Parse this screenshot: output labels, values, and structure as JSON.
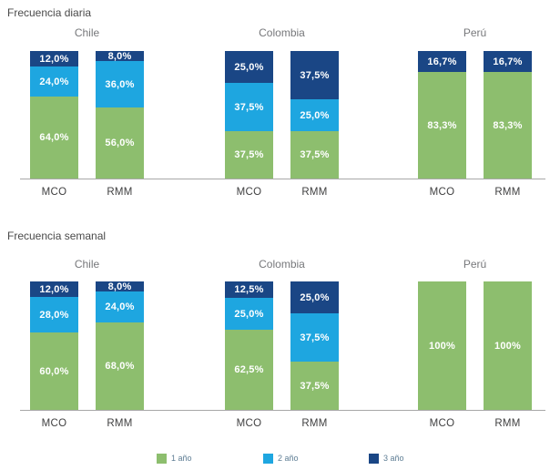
{
  "colors": {
    "green": "#8DBE6E",
    "light_blue": "#1EA6E0",
    "dark_blue": "#1A4685",
    "axis": "#a8a8a8",
    "title_text": "#4a4a4a",
    "country_text": "#77787b",
    "tick_text": "#404041",
    "legend_text": "#5e7d94",
    "value_label_text": "#ffffff"
  },
  "legend": {
    "items": [
      {
        "label": "1 año",
        "color": "#8DBE6E"
      },
      {
        "label": "2 año",
        "color": "#1EA6E0"
      },
      {
        "label": "3 año",
        "color": "#1A4685"
      }
    ]
  },
  "chart_data": [
    {
      "type": "bar",
      "stacked": true,
      "title": "Frecuencia diaria",
      "groups": [
        "Chile",
        "Colombia",
        "Perú"
      ],
      "bar_labels": [
        "MCO",
        "RMM"
      ],
      "categories": [
        "Chile MCO",
        "Chile RMM",
        "Colombia MCO",
        "Colombia RMM",
        "Perú MCO",
        "Perú RMM"
      ],
      "series": [
        {
          "name": "1 año",
          "color": "#8DBE6E",
          "values": [
            64.0,
            56.0,
            37.5,
            37.5,
            83.3,
            83.3
          ]
        },
        {
          "name": "2 año",
          "color": "#1EA6E0",
          "values": [
            24.0,
            36.0,
            37.5,
            25.0,
            0,
            0
          ]
        },
        {
          "name": "3 año",
          "color": "#1A4685",
          "values": [
            12.0,
            8.0,
            25.0,
            37.5,
            16.7,
            16.7
          ]
        }
      ],
      "value_labels": [
        [
          "64,0%",
          "24,0%",
          "12,0%"
        ],
        [
          "56,0%",
          "36,0%",
          "8,0%"
        ],
        [
          "37,5%",
          "37,5%",
          "25,0%"
        ],
        [
          "37,5%",
          "25,0%",
          "37,5%"
        ],
        [
          "83,3%",
          "",
          "16,7%"
        ],
        [
          "83,3%",
          "",
          "16,7%"
        ]
      ],
      "ylim": [
        0,
        100
      ],
      "grid": false,
      "legend_position": "bottom"
    },
    {
      "type": "bar",
      "stacked": true,
      "title": "Frecuencia semanal",
      "groups": [
        "Chile",
        "Colombia",
        "Perú"
      ],
      "bar_labels": [
        "MCO",
        "RMM"
      ],
      "categories": [
        "Chile MCO",
        "Chile RMM",
        "Colombia MCO",
        "Colombia RMM",
        "Perú MCO",
        "Perú RMM"
      ],
      "series": [
        {
          "name": "1 año",
          "color": "#8DBE6E",
          "values": [
            60.0,
            68.0,
            62.5,
            37.5,
            100,
            100
          ]
        },
        {
          "name": "2 año",
          "color": "#1EA6E0",
          "values": [
            28.0,
            24.0,
            25.0,
            37.5,
            0,
            0
          ]
        },
        {
          "name": "3 año",
          "color": "#1A4685",
          "values": [
            12.0,
            8.0,
            12.5,
            25.0,
            0,
            0
          ]
        }
      ],
      "value_labels": [
        [
          "60,0%",
          "28,0%",
          "12,0%"
        ],
        [
          "68,0%",
          "24,0%",
          "8,0%"
        ],
        [
          "62,5%",
          "25,0%",
          "12,5%"
        ],
        [
          "37,5%",
          "37,5%",
          "25,0%"
        ],
        [
          "100%",
          "",
          ""
        ],
        [
          "100%",
          "",
          ""
        ]
      ],
      "ylim": [
        0,
        100
      ],
      "grid": false,
      "legend_position": "bottom"
    }
  ]
}
